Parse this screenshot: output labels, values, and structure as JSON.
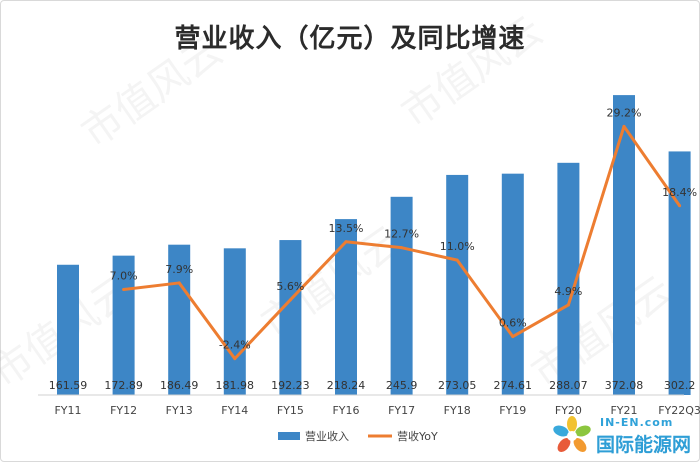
{
  "chart_data": {
    "type": "bar+line",
    "title": "营业收入（亿元）及同比增速",
    "categories": [
      "FY11",
      "FY12",
      "FY13",
      "FY14",
      "FY15",
      "FY16",
      "FY17",
      "FY18",
      "FY19",
      "FY20",
      "FY21",
      "FY22Q3"
    ],
    "series": [
      {
        "name": "营业收入",
        "type": "bar",
        "color": "#3d86c6",
        "values": [
          161.59,
          172.89,
          186.49,
          181.98,
          192.23,
          218.24,
          245.9,
          273.05,
          274.61,
          288.07,
          372.08,
          302.2
        ],
        "labels": [
          "161.59",
          "172.89",
          "186.49",
          "181.98",
          "192.23",
          "218.24",
          "245.9",
          "273.05",
          "274.61",
          "288.07",
          "372.08",
          "302.2"
        ]
      },
      {
        "name": "营收YoY",
        "type": "line",
        "color": "#ed7d31",
        "values": [
          null,
          7.0,
          7.9,
          -2.4,
          5.6,
          13.5,
          12.7,
          11.0,
          0.6,
          4.9,
          29.2,
          18.4
        ],
        "labels": [
          null,
          "7.0%",
          "7.9%",
          "-2.4%",
          "5.6%",
          "13.5%",
          "12.7%",
          "11.0%",
          "0.6%",
          "4.9%",
          "29.2%",
          "18.4%"
        ]
      }
    ],
    "legend_position": "bottom",
    "grid": false
  },
  "watermark": "市值风云",
  "logo": {
    "top_text": "IN-EN.com",
    "main_text": "国际能源网",
    "icon": "sunflower-icon"
  }
}
